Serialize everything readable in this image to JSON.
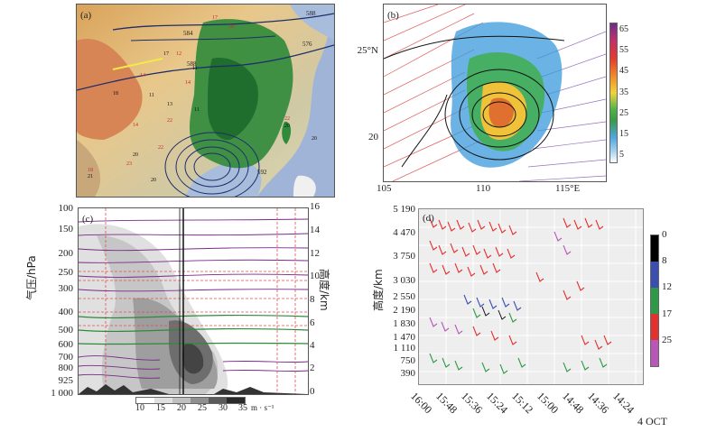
{
  "panels": {
    "a": {
      "label": "(a)",
      "contour_labels": [
        "588",
        "584",
        "576",
        "588",
        "592"
      ]
    },
    "b": {
      "label": "(b)",
      "lat_labels": [
        "25°N",
        "20"
      ],
      "lon_labels": [
        "105",
        "110",
        "115°E"
      ],
      "colorbar_ticks": [
        "65",
        "55",
        "45",
        "35",
        "25",
        "15",
        "5"
      ]
    },
    "c": {
      "label": "(c)",
      "ylabel_left": "气压/hPa",
      "ylabel_right": "高度/km",
      "pressure_ticks": [
        "100",
        "150",
        "200",
        "250",
        "300",
        "400",
        "500",
        "600",
        "700",
        "800",
        "925",
        "1 000"
      ],
      "height_ticks": [
        "16",
        "14",
        "12",
        "10",
        "8",
        "6",
        "4",
        "2",
        "0"
      ],
      "colorbar_ticks": [
        "10",
        "15",
        "20",
        "25",
        "30",
        "35"
      ],
      "colorbar_unit": "m · s⁻¹"
    },
    "d": {
      "label": "(d)",
      "ylabel": "高度/km",
      "height_ticks": [
        "5 190",
        "4 470",
        "3 750",
        "3 030",
        "2 550",
        "2 190",
        "1 830",
        "1 470",
        "1 110",
        "750",
        "390"
      ],
      "time_ticks": [
        "16:00",
        "15:48",
        "15:36",
        "15:24",
        "15:12",
        "15:00",
        "14:48",
        "14:36",
        "14:24"
      ],
      "date_label": "4 OCT",
      "colorbar_ticks": [
        "0",
        "8",
        "12",
        "17",
        "25"
      ],
      "colorbar_colors": [
        "#000000",
        "#3a4fb0",
        "#2e9a46",
        "#e53030",
        "#b857b8"
      ]
    }
  }
}
